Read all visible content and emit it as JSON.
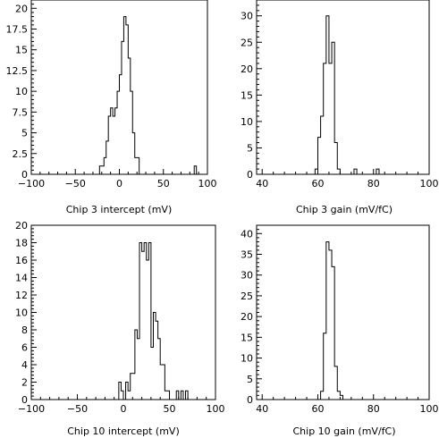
{
  "chart_data": [
    {
      "type": "bar",
      "xlabel": "Chip 3 intercept (mV)",
      "ylabel": "",
      "xlim": [
        -100,
        100
      ],
      "ylim": [
        0,
        21
      ],
      "xticks": [
        -100,
        -50,
        0,
        50,
        100
      ],
      "yticks": [
        0,
        2.5,
        5,
        7.5,
        10,
        12.5,
        15,
        17.5,
        20
      ],
      "ytick_labels": [
        "0",
        "2.5",
        "5",
        "7.5",
        "10",
        "12.5",
        "15",
        "17.5",
        "20"
      ],
      "bin_edges": [
        -25,
        -22.5,
        -20,
        -17.5,
        -15,
        -12.5,
        -10,
        -7.5,
        -5,
        -2.5,
        0,
        2.5,
        5,
        7.5,
        10,
        12.5,
        15,
        17.5,
        20,
        22.5,
        25,
        27.5,
        30,
        32.5,
        35,
        37.5,
        40,
        42.5,
        45,
        47.5,
        50,
        52.5,
        55,
        57.5,
        60,
        62.5,
        65,
        67.5,
        70,
        72.5,
        75,
        77.5,
        80,
        82.5,
        85,
        87.5,
        90
      ],
      "values": [
        0,
        1,
        1,
        2,
        4,
        7,
        8,
        7,
        8,
        10,
        12,
        16,
        19,
        18,
        14,
        10,
        5,
        2,
        2,
        0,
        0,
        0,
        0,
        0,
        0,
        0,
        0,
        0,
        0,
        0,
        0,
        0,
        0,
        0,
        0,
        0,
        0,
        0,
        0,
        0,
        0,
        0,
        0,
        0,
        1,
        0
      ]
    },
    {
      "type": "bar",
      "xlabel": "Chip 3 gain (mV/fC)",
      "ylabel": "",
      "xlim": [
        38,
        100
      ],
      "ylim": [
        0,
        33
      ],
      "xticks": [
        40,
        60,
        80,
        100
      ],
      "yticks": [
        0,
        5,
        10,
        15,
        20,
        25,
        30
      ],
      "ytick_labels": [
        "0",
        "5",
        "10",
        "15",
        "20",
        "25",
        "30"
      ],
      "bin_edges": [
        58,
        59,
        60,
        61,
        62,
        63,
        64,
        65,
        66,
        67,
        68,
        69,
        70,
        71,
        72,
        73,
        74,
        75,
        76,
        77,
        78,
        79,
        80,
        81,
        82,
        83,
        84
      ],
      "values": [
        0,
        1,
        7,
        11,
        21,
        30,
        21,
        25,
        6,
        1,
        0,
        0,
        0,
        0,
        0,
        1,
        0,
        0,
        0,
        0,
        0,
        0,
        0,
        1,
        0,
        0
      ]
    },
    {
      "type": "bar",
      "xlabel": "Chip 10 intercept (mV)",
      "ylabel": "",
      "xlim": [
        -100,
        100
      ],
      "ylim": [
        0,
        20
      ],
      "xticks": [
        -100,
        -50,
        0,
        50,
        100
      ],
      "yticks": [
        0,
        2,
        4,
        6,
        8,
        10,
        12,
        14,
        16,
        18,
        20
      ],
      "ytick_labels": [
        "0",
        "2",
        "4",
        "6",
        "8",
        "10",
        "12",
        "14",
        "16",
        "18",
        "20"
      ],
      "bin_edges": [
        -5,
        -2.5,
        0,
        2.5,
        5,
        7.5,
        10,
        12.5,
        15,
        17.5,
        20,
        22.5,
        25,
        27.5,
        30,
        32.5,
        35,
        37.5,
        40,
        42.5,
        45,
        47.5,
        50,
        52.5,
        55,
        57.5,
        60,
        62.5,
        65,
        67.5,
        70,
        72.5,
        75
      ],
      "values": [
        2,
        1,
        0,
        2,
        1,
        3,
        3,
        8,
        7,
        18,
        17,
        18,
        16,
        18,
        6,
        10,
        9,
        7,
        4,
        4,
        1,
        1,
        0,
        0,
        0,
        1,
        0,
        1,
        0,
        1,
        0,
        0
      ]
    },
    {
      "type": "bar",
      "xlabel": "Chip 10 gain (mV/fC)",
      "ylabel": "",
      "xlim": [
        38,
        100
      ],
      "ylim": [
        0,
        42
      ],
      "xticks": [
        40,
        60,
        80,
        100
      ],
      "yticks": [
        0,
        5,
        10,
        15,
        20,
        25,
        30,
        35,
        40
      ],
      "ytick_labels": [
        "0",
        "5",
        "10",
        "15",
        "20",
        "25",
        "30",
        "35",
        "40"
      ],
      "bin_edges": [
        61,
        62,
        63,
        64,
        65,
        66,
        67,
        68,
        69,
        70
      ],
      "values": [
        2,
        16,
        38,
        36,
        32,
        8,
        2,
        1,
        0
      ]
    }
  ]
}
